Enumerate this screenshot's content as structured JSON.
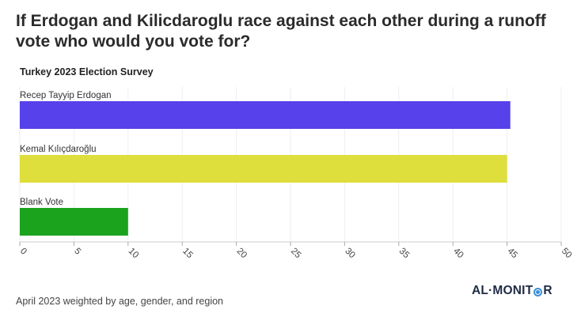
{
  "title": "If Erdogan and Kilicdaroglu race against each other during a runoff vote who would you vote for?",
  "subtitle": "Turkey 2023 Election Survey",
  "footnote": "April 2023 weighted by age, gender, and region",
  "logo": {
    "left_text": "AL·MONIT",
    "right_text": "R"
  },
  "chart_data": {
    "type": "bar",
    "orientation": "horizontal",
    "title": "Turkey 2023 Election Survey",
    "xlabel": "",
    "ylabel": "",
    "xlim": [
      0,
      50
    ],
    "xticks": [
      0,
      5,
      10,
      15,
      20,
      25,
      30,
      35,
      40,
      45,
      50
    ],
    "categories": [
      "Recep Tayyip Erdogan",
      "Kemal Kılıçdaroğlu",
      "Blank Vote"
    ],
    "values": [
      45.3,
      45.0,
      10.0
    ],
    "colors": [
      "#5641ea",
      "#dede3c",
      "#1ca31d"
    ],
    "grid": true
  }
}
